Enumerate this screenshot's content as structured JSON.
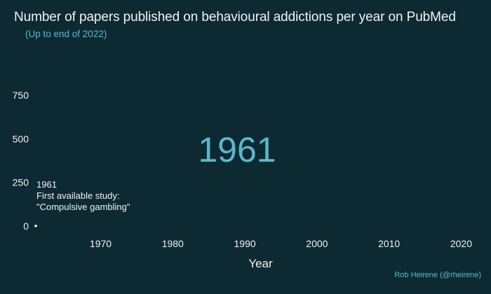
{
  "chart_data": {
    "type": "line",
    "title": "Number of papers published on behavioural addictions per year on PubMed",
    "subtitle": "(Up to end of 2022)",
    "xlabel": "Year",
    "ylabel": "",
    "xlim": [
      1961,
      2022
    ],
    "ylim": [
      0,
      750
    ],
    "x_ticks": [
      1970,
      1980,
      1990,
      2000,
      2010,
      2020
    ],
    "y_ticks": [
      0,
      250,
      500,
      750
    ],
    "current_year": "1961",
    "series": [
      {
        "x": [
          1961
        ],
        "values": [
          1
        ]
      }
    ],
    "annotation": {
      "year": 1961,
      "lines": [
        "1961",
        "First available study:",
        "\"Compulsive gambling\""
      ]
    },
    "grid": false,
    "credit": "Rob Heirene (@rheirene)",
    "colors": {
      "background": "#0d2a33",
      "accent": "#5bb8cc",
      "text": "#f2f2f2",
      "point": "#ffffff"
    }
  }
}
